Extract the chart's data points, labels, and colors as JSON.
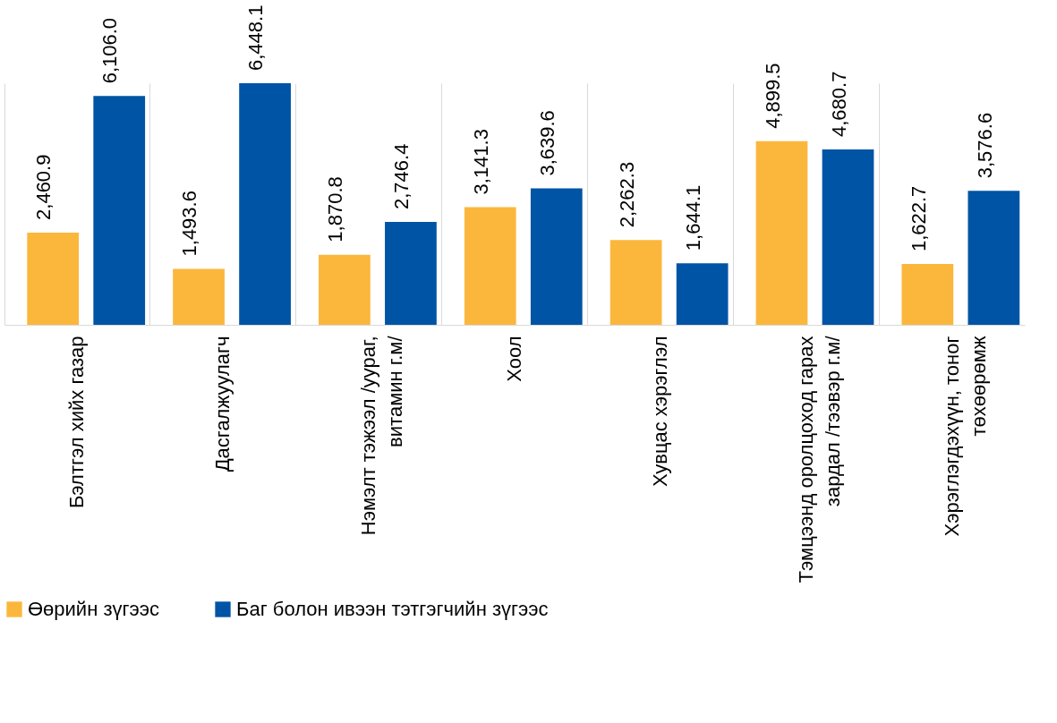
{
  "chart_data": {
    "type": "bar",
    "categories": [
      "Бэлтгэл хийх газар",
      "Дасгалжуулагч",
      "Нэмэлт тэжээл /уураг, витамин г.м/",
      "Хоол",
      "Хувцас хэрэглэл",
      "Тэмцээнд оролцоход гарах зардал /тээвэр г.м/",
      "Хэрэглэгдэхүүн, тоног төхөөрөмж"
    ],
    "series": [
      {
        "name": "Өөрийн зүгээс",
        "color": "#fbb73c",
        "values": [
          2460.9,
          1493.6,
          1870.8,
          3141.3,
          2262.3,
          4899.5,
          1622.7
        ],
        "value_labels": [
          "2,460.9",
          "1,493.6",
          "1,870.8",
          "3,141.3",
          "2,262.3",
          "4,899.5",
          "1,622.7"
        ]
      },
      {
        "name": "Баг болон ивээн тэтгэгчийн зүгээс",
        "color": "#0054a6",
        "values": [
          6106.0,
          6448.1,
          2746.4,
          3639.6,
          1644.1,
          4680.7,
          3576.6
        ],
        "value_labels": [
          "6,106.0",
          "6,448.1",
          "2,746.4",
          "3,639.6",
          "1,644.1",
          "4,680.7",
          "3,576.6"
        ]
      }
    ],
    "grid": "x",
    "legend": "bottom"
  }
}
